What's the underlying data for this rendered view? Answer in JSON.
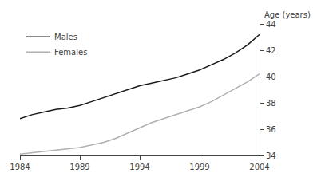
{
  "chart_data": {
    "type": "line",
    "x": [
      1984,
      1985,
      1986,
      1987,
      1988,
      1989,
      1990,
      1991,
      1992,
      1993,
      1994,
      1995,
      1996,
      1997,
      1998,
      1999,
      2000,
      2001,
      2002,
      2003,
      2004
    ],
    "series": [
      {
        "name": "Males",
        "color": "#1a1a1a",
        "values": [
          36.8,
          37.1,
          37.3,
          37.5,
          37.6,
          37.8,
          38.1,
          38.4,
          38.7,
          39.0,
          39.3,
          39.5,
          39.7,
          39.9,
          40.2,
          40.5,
          40.9,
          41.3,
          41.8,
          42.4,
          43.2
        ]
      },
      {
        "name": "Females",
        "color": "#b0b0b0",
        "values": [
          34.1,
          34.2,
          34.3,
          34.4,
          34.5,
          34.6,
          34.8,
          35.0,
          35.3,
          35.7,
          36.1,
          36.5,
          36.8,
          37.1,
          37.4,
          37.7,
          38.1,
          38.6,
          39.1,
          39.6,
          40.2
        ]
      }
    ],
    "ylabel": "Age (years)",
    "xlim": [
      1984,
      2004
    ],
    "xticks": [
      1984,
      1989,
      1994,
      1999,
      2004
    ],
    "ylim": [
      34,
      44
    ],
    "yticks": [
      34,
      36,
      38,
      40,
      42,
      44
    ],
    "legend": "upper left",
    "grid": false
  }
}
